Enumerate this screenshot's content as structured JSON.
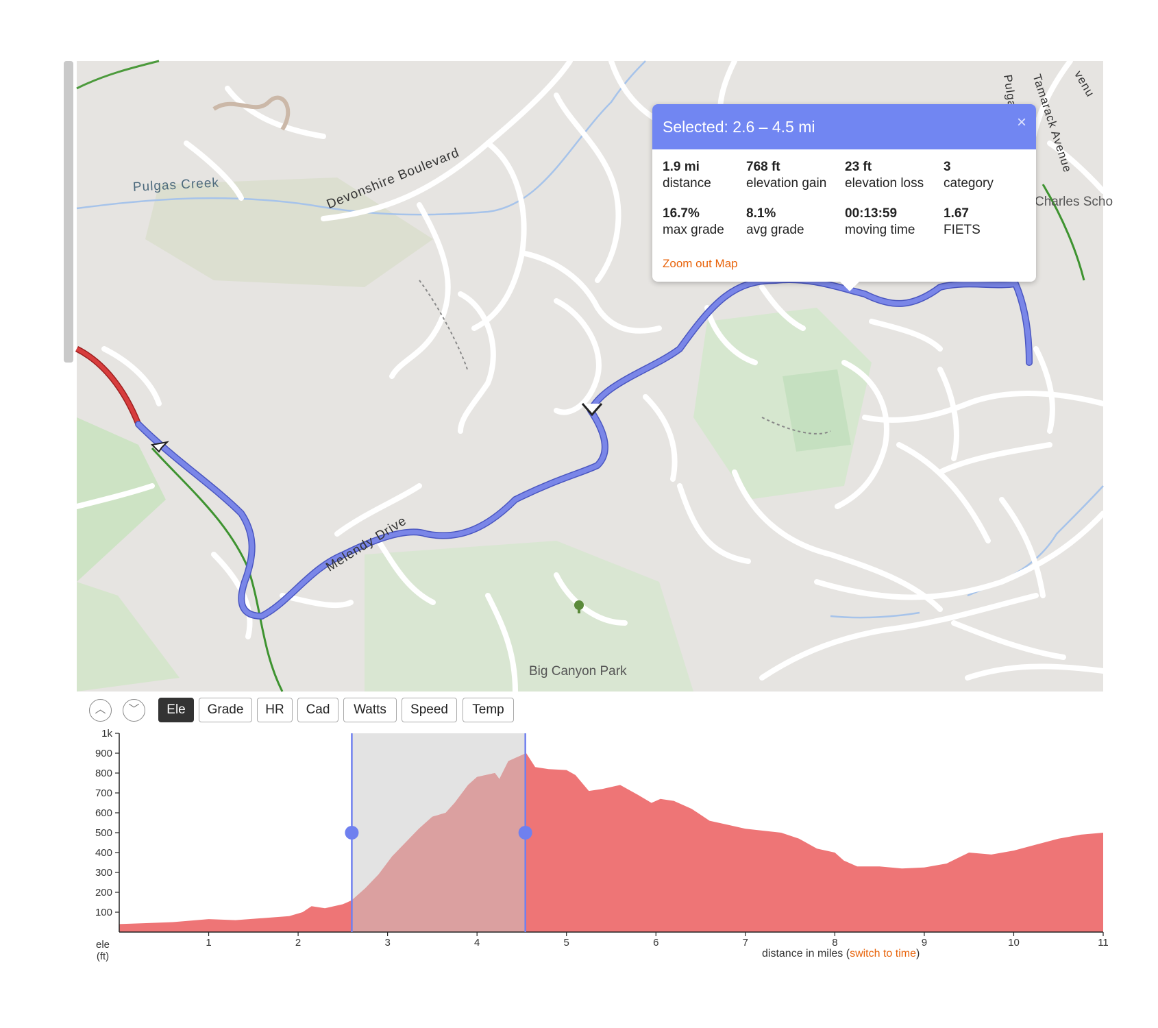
{
  "map": {
    "labels": {
      "pulgas_creek": "Pulgas Creek",
      "devonshire": "Devonshire Boulevard",
      "melendy": "Melendy Drive",
      "big_canyon": "Big Canyon Park",
      "charles": "Charles Scho",
      "tamarack": "Tamarack Avenue",
      "pulgas": "Pulga",
      "avenue": "venu"
    },
    "colors": {
      "route": "#7a86e8",
      "route_red": "#d73d3d",
      "background": "#e6e4e1",
      "park": "#cfe0c4"
    }
  },
  "popup": {
    "title": "Selected: 2.6 – 4.5 mi",
    "close": "×",
    "stats": [
      {
        "value": "1.9 mi",
        "label": "distance"
      },
      {
        "value": "768 ft",
        "label": "elevation gain"
      },
      {
        "value": "23 ft",
        "label": "elevation loss"
      },
      {
        "value": "3",
        "label": "category"
      },
      {
        "value": "16.7%",
        "label": "max grade"
      },
      {
        "value": "8.1%",
        "label": "avg grade"
      },
      {
        "value": "00:13:59",
        "label": "moving time"
      },
      {
        "value": "1.67",
        "label": "FIETS"
      }
    ],
    "zoom_out": "Zoom out Map"
  },
  "toolbar": {
    "up_icon": "︿",
    "down_icon": "﹀",
    "tabs": [
      "Ele",
      "Grade",
      "HR",
      "Cad",
      "Watts",
      "Speed",
      "Temp"
    ],
    "active": "Ele"
  },
  "chart": {
    "ylabel_line1": "ele",
    "ylabel_line2": "(ft)",
    "xcaption": "distance in miles",
    "switch_prefix": "(",
    "switch_link": "switch to time",
    "switch_suffix": ")"
  },
  "chart_data": {
    "type": "area",
    "title": "",
    "xlabel": "distance in miles",
    "ylabel": "ele (ft)",
    "xlim": [
      0,
      11
    ],
    "ylim": [
      0,
      1000
    ],
    "x_ticks": [
      "1",
      "2",
      "3",
      "4",
      "5",
      "6",
      "7",
      "8",
      "9",
      "10",
      "11"
    ],
    "y_ticks": [
      "100",
      "200",
      "300",
      "400",
      "500",
      "600",
      "700",
      "800",
      "900",
      "1k"
    ],
    "selection": [
      2.6,
      4.54
    ],
    "x": [
      0,
      0.3,
      0.6,
      1.0,
      1.3,
      1.6,
      1.9,
      2.05,
      2.15,
      2.3,
      2.5,
      2.6,
      2.75,
      2.9,
      3.05,
      3.2,
      3.35,
      3.5,
      3.65,
      3.75,
      3.9,
      4.0,
      4.1,
      4.2,
      4.25,
      4.35,
      4.45,
      4.55,
      4.65,
      4.8,
      5.0,
      5.1,
      5.25,
      5.4,
      5.6,
      5.8,
      5.95,
      6.05,
      6.2,
      6.4,
      6.6,
      6.8,
      7.0,
      7.2,
      7.4,
      7.6,
      7.8,
      8.0,
      8.1,
      8.25,
      8.5,
      8.75,
      9.0,
      9.25,
      9.5,
      9.75,
      10.0,
      10.25,
      10.5,
      10.75,
      11.0
    ],
    "y": [
      40,
      45,
      50,
      65,
      60,
      70,
      80,
      100,
      130,
      120,
      140,
      160,
      220,
      290,
      380,
      450,
      520,
      580,
      600,
      650,
      740,
      780,
      790,
      800,
      770,
      860,
      880,
      900,
      830,
      820,
      815,
      790,
      710,
      720,
      740,
      690,
      650,
      670,
      660,
      620,
      560,
      540,
      520,
      510,
      500,
      470,
      420,
      400,
      360,
      330,
      330,
      320,
      325,
      345,
      400,
      390,
      410,
      440,
      470,
      490,
      500
    ]
  }
}
